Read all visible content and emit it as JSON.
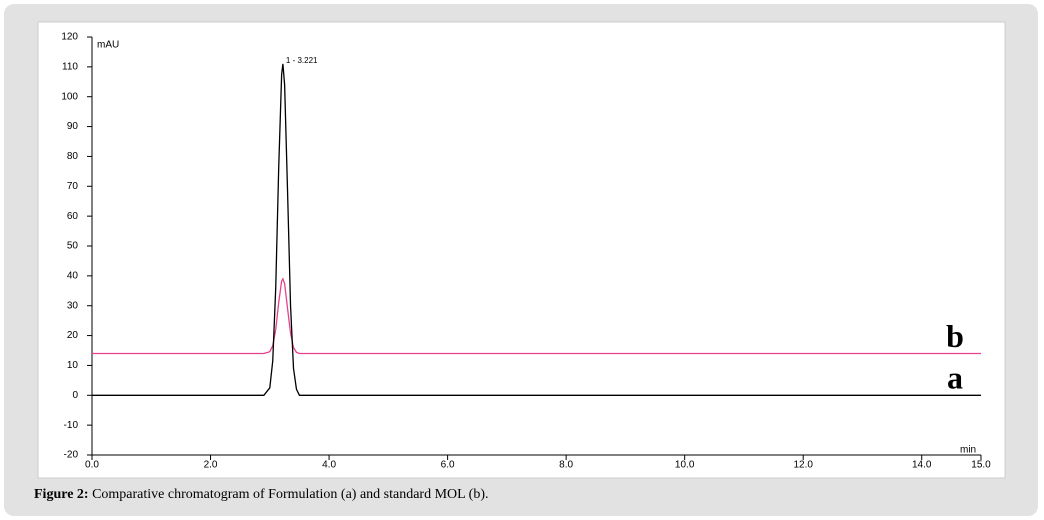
{
  "chart_data": {
    "type": "line",
    "y_unit": "mAU",
    "x_unit": "min",
    "annotation": "1 - 3.221",
    "x": [
      0,
      2.9,
      3.0,
      3.05,
      3.1,
      3.15,
      3.2,
      3.221,
      3.25,
      3.3,
      3.35,
      3.4,
      3.45,
      3.5,
      15
    ],
    "series": [
      {
        "name": "a",
        "color": "#000000",
        "values": [
          0,
          0,
          2.5,
          11.6,
          36,
          76,
          107.5,
          111,
          104,
          68,
          30,
          9,
          2,
          0,
          0
        ]
      },
      {
        "name": "b",
        "color": "#e8408a",
        "values": [
          14,
          14,
          14.6,
          16.6,
          22,
          31,
          38.3,
          39,
          37.4,
          29,
          20.8,
          16,
          14.4,
          14,
          14
        ]
      }
    ],
    "xlim": [
      0,
      15
    ],
    "xticks": [
      {
        "value": 0,
        "label": "0.0"
      },
      {
        "value": 2,
        "label": "2.0"
      },
      {
        "value": 4,
        "label": "4.0"
      },
      {
        "value": 6,
        "label": "6.0"
      },
      {
        "value": 8,
        "label": "8.0"
      },
      {
        "value": 10,
        "label": "10.0"
      },
      {
        "value": 12,
        "label": "12.0"
      },
      {
        "value": 14,
        "label": "14.0"
      },
      {
        "value": 15,
        "label": "15.0"
      }
    ],
    "ylim": [
      -20,
      120
    ],
    "yticks": [
      -20,
      -10,
      0,
      10,
      20,
      30,
      40,
      50,
      60,
      70,
      80,
      90,
      100,
      110,
      120
    ]
  },
  "caption": {
    "label": "Figure 2:",
    "text": "Comparative chromatogram of Formulation (a) and standard MOL (b)."
  }
}
